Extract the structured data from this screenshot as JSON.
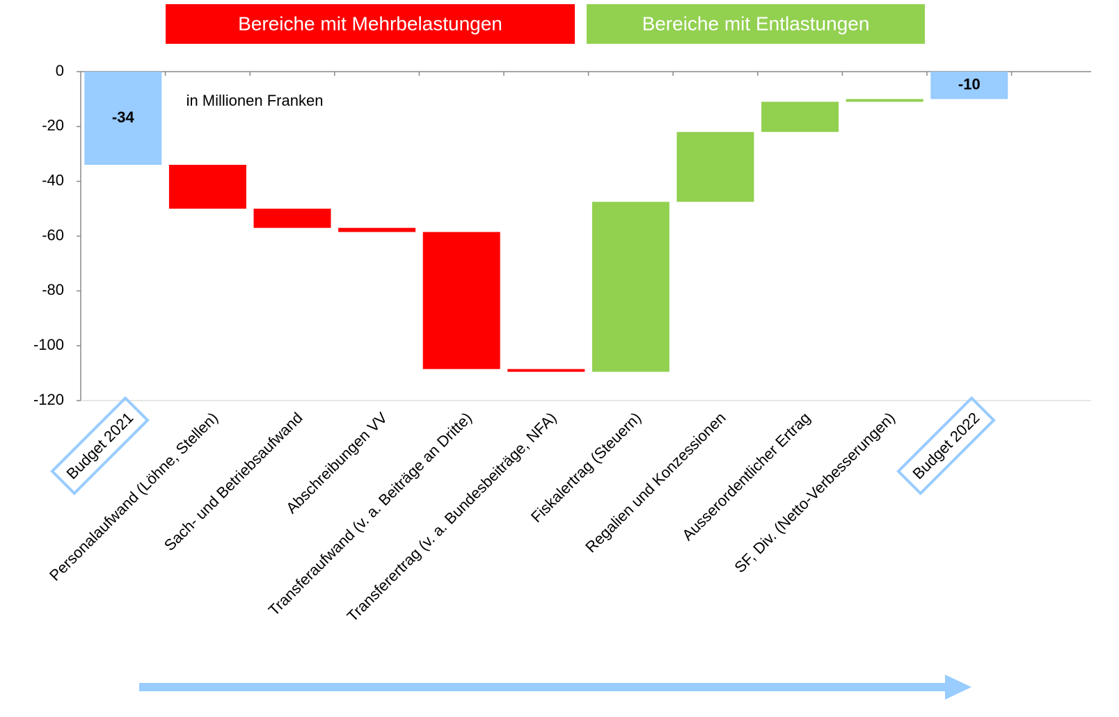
{
  "chart_data": {
    "type": "waterfall",
    "legend": [
      {
        "name": "Bereiche mit Mehrbelastungen",
        "color": "#ff0000"
      },
      {
        "name": "Bereiche mit Entlastungen",
        "color": "#92d050"
      }
    ],
    "annotation": "in Millionen Franken",
    "categories": [
      "Budget 2021",
      "Personalaufwand (Löhne, Stellen)",
      "Sach- und Betriebsaufwand",
      "Abschreibungen VV",
      "Transferaufwand (v. a. Beiträge an Dritte)",
      "Transferertrag (v. a. Bundesbeiträge, NFA)",
      "Fiskalertrag (Steuern)",
      "Regalien und Konzessionen",
      "Ausserordentlicher Ertrag",
      "SF, Div. (Netto-Verbesserungen)",
      "Budget 2022"
    ],
    "measure": [
      "absolute",
      "relative",
      "relative",
      "relative",
      "relative",
      "relative",
      "relative",
      "relative",
      "relative",
      "relative",
      "absolute"
    ],
    "values": [
      -34,
      -16,
      -7,
      -1.5,
      -50,
      -1,
      62,
      25.5,
      11,
      1,
      -10
    ],
    "colors": [
      "#99ccff",
      "#ff0000",
      "#ff0000",
      "#ff0000",
      "#ff0000",
      "#ff0000",
      "#92d050",
      "#92d050",
      "#92d050",
      "#92d050",
      "#99ccff"
    ],
    "ylim": [
      -120,
      0
    ],
    "yticks": [
      0,
      -20,
      -40,
      -60,
      -80,
      -100,
      -120
    ]
  }
}
